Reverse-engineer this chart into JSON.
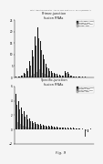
{
  "title1": "Primer-junction\nfusion RNAs",
  "title2": "Specific-junction\nfusion RNAs",
  "fig_label": "Fig. 9",
  "header_text": "Patent Application Publication   Aug. 20, 2009  Sheet 7 of 31   US 2009/0209625 A1",
  "legend_labels": [
    "Antisense +LNA",
    "Sense +LNA",
    "Antisense -LNA",
    "Sense -LNA"
  ],
  "legend_colors": [
    "#111111",
    "#444444",
    "#777777",
    "#aaaaaa"
  ],
  "chart1_data": [
    [
      0.3,
      0.2,
      0.1,
      0.05
    ],
    [
      0.5,
      0.3,
      0.2,
      0.1
    ],
    [
      1.0,
      0.7,
      0.4,
      0.2
    ],
    [
      2.0,
      1.5,
      0.8,
      0.3
    ],
    [
      4.0,
      3.0,
      1.5,
      0.5
    ],
    [
      7.0,
      5.0,
      2.5,
      1.0
    ],
    [
      12.0,
      9.0,
      4.5,
      1.5
    ],
    [
      18.0,
      14.0,
      7.0,
      2.5
    ],
    [
      22.0,
      17.0,
      9.0,
      3.5
    ],
    [
      16.0,
      12.0,
      6.0,
      2.0
    ],
    [
      10.0,
      8.0,
      4.0,
      1.5
    ],
    [
      6.0,
      4.5,
      2.5,
      0.8
    ],
    [
      4.0,
      3.0,
      1.5,
      0.5
    ],
    [
      3.0,
      2.0,
      1.0,
      0.4
    ],
    [
      2.0,
      1.5,
      0.8,
      0.3
    ],
    [
      1.5,
      1.0,
      0.6,
      0.2
    ],
    [
      1.2,
      0.8,
      0.5,
      0.15
    ],
    [
      1.0,
      0.7,
      0.4,
      0.12
    ],
    [
      3.0,
      2.0,
      1.0,
      0.4
    ],
    [
      2.5,
      1.8,
      0.9,
      0.35
    ],
    [
      1.0,
      0.7,
      0.4,
      0.12
    ],
    [
      0.5,
      0.35,
      0.2,
      0.06
    ],
    [
      0.3,
      0.2,
      0.1,
      0.04
    ],
    [
      0.5,
      0.35,
      0.2,
      0.07
    ],
    [
      0.8,
      0.6,
      0.3,
      0.1
    ],
    [
      0.4,
      0.3,
      0.15,
      0.05
    ],
    [
      0.3,
      0.2,
      0.1,
      0.03
    ],
    [
      0.3,
      0.2,
      0.1,
      0.03
    ]
  ],
  "chart2_data": [
    [
      5.0,
      3.5,
      2.0,
      1.0
    ],
    [
      4.0,
      2.8,
      1.5,
      0.7
    ],
    [
      3.0,
      2.2,
      1.2,
      0.5
    ],
    [
      2.5,
      1.8,
      1.0,
      0.4
    ],
    [
      2.0,
      1.4,
      0.8,
      0.3
    ],
    [
      1.5,
      1.1,
      0.6,
      0.25
    ],
    [
      1.2,
      0.9,
      0.5,
      0.2
    ],
    [
      1.0,
      0.7,
      0.4,
      0.15
    ],
    [
      0.8,
      0.6,
      0.35,
      0.12
    ],
    [
      0.7,
      0.5,
      0.3,
      0.1
    ],
    [
      0.6,
      0.45,
      0.25,
      0.09
    ],
    [
      0.5,
      0.4,
      0.22,
      0.08
    ],
    [
      0.5,
      0.35,
      0.2,
      0.07
    ],
    [
      0.45,
      0.32,
      0.18,
      0.065
    ],
    [
      0.4,
      0.3,
      0.17,
      0.06
    ],
    [
      0.35,
      0.25,
      0.15,
      0.055
    ],
    [
      0.3,
      0.22,
      0.13,
      0.05
    ],
    [
      0.3,
      0.2,
      0.12,
      0.045
    ],
    [
      0.25,
      0.18,
      0.11,
      0.04
    ],
    [
      0.25,
      0.17,
      0.1,
      0.038
    ],
    [
      0.2,
      0.15,
      0.09,
      0.035
    ],
    [
      0.2,
      0.14,
      0.085,
      0.032
    ],
    [
      0.18,
      0.13,
      0.08,
      0.03
    ],
    [
      0.18,
      0.12,
      0.075,
      0.028
    ],
    [
      0.15,
      0.11,
      0.07,
      0.025
    ],
    [
      -1.5,
      -1.0,
      -0.5,
      -0.2
    ],
    [
      -0.5,
      -0.35,
      -0.18,
      -0.07
    ],
    [
      0.1,
      0.07,
      0.04,
      0.015
    ]
  ],
  "ylim1": [
    0,
    25
  ],
  "ylim2": [
    -2,
    6
  ],
  "yticks1": [
    0,
    5,
    10,
    15,
    20,
    25
  ],
  "yticks2": [
    -2,
    0,
    2,
    4,
    6
  ],
  "bg_color": "#f5f5f5"
}
